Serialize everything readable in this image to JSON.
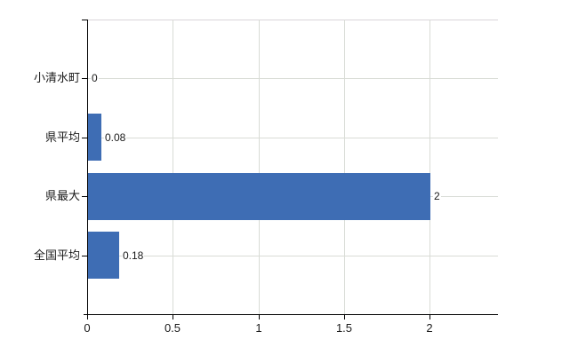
{
  "chart_data": {
    "type": "bar",
    "orientation": "horizontal",
    "title": "",
    "categories": [
      "小清水町",
      "県平均",
      "県最大",
      "全国平均"
    ],
    "values": [
      0,
      0.08,
      2,
      0.18
    ],
    "value_labels": [
      "0",
      "0.08",
      "2",
      "0.18"
    ],
    "x_ticks": [
      {
        "value": 0,
        "label": "0"
      },
      {
        "value": 0.5,
        "label": "0.5"
      },
      {
        "value": 1,
        "label": "1"
      },
      {
        "value": 1.5,
        "label": "1.5"
      },
      {
        "value": 2,
        "label": "2"
      }
    ],
    "xlim": [
      0,
      2.4
    ],
    "grid": true,
    "legend": false,
    "colors": {
      "bar": "#3e6db4",
      "grid": "#d9dcd6",
      "top_border": "#d9d4d9",
      "axis": "#000000",
      "text": "#1a1a1a"
    }
  }
}
